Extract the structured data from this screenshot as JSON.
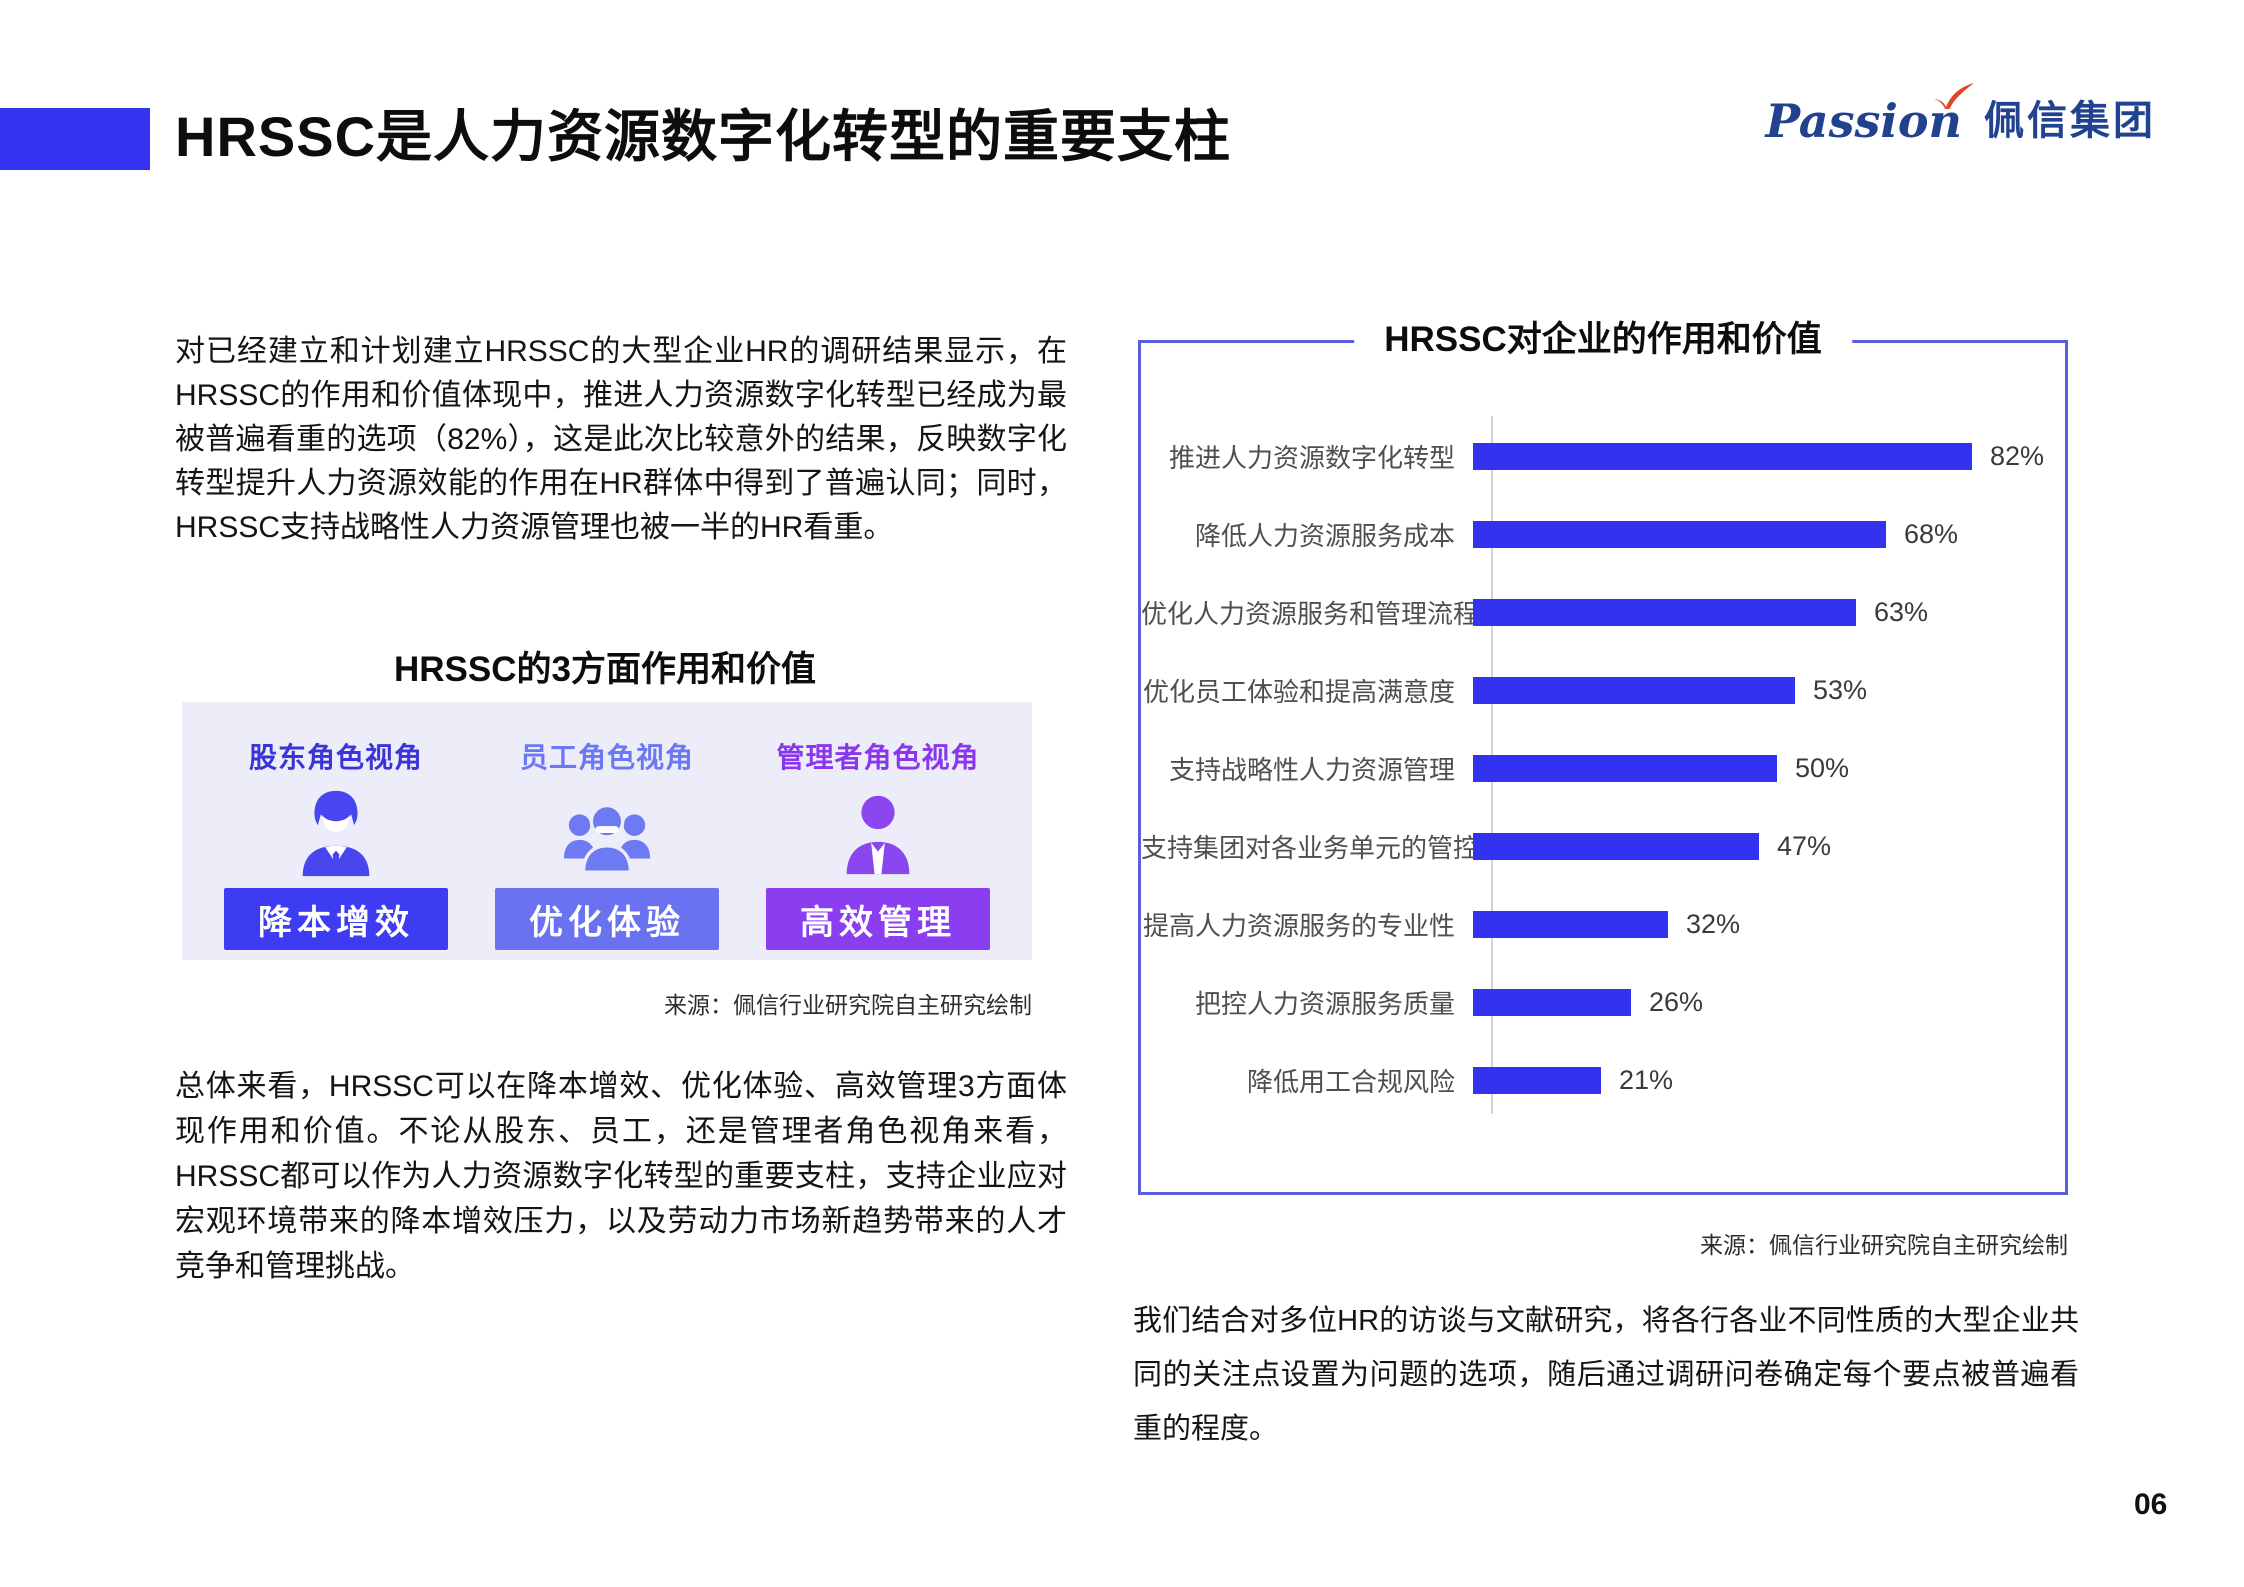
{
  "page": {
    "title": "HRSSC是人力资源数字化转型的重要支柱",
    "page_number": "06"
  },
  "logo": {
    "brand_script": "Passion",
    "brand_name": "佩信集团"
  },
  "left_column": {
    "intro_paragraph": "对已经建立和计划建立HRSSC的大型企业HR的调研结果显示，在HRSSC的作用和价值体现中，推进人力资源数字化转型已经成为最被普遍看重的选项（82%），这是此次比较意外的结果，反映数字化转型提升人力资源效能的作用在HR群体中得到了普遍认同；同时，HRSSC支持战略性人力资源管理也被一半的HR看重。",
    "value_panel": {
      "title": "HRSSC的3方面作用和价值",
      "columns": [
        {
          "header": "股东角色视角",
          "icon": "shareholder-businessman-icon",
          "button_label": "降本增效",
          "accent": "#3e3cf2"
        },
        {
          "header": "员工角色视角",
          "icon": "employee-group-icon",
          "button_label": "优化体验",
          "accent": "#6b72f2"
        },
        {
          "header": "管理者角色视角",
          "icon": "manager-person-icon",
          "button_label": "高效管理",
          "accent": "#8b3ef0"
        }
      ],
      "source": "来源：佩信行业研究院自主研究绘制"
    },
    "summary_paragraph": "总体来看，HRSSC可以在降本增效、优化体验、高效管理3方面体现作用和价值。不论从股东、员工，还是管理者角色视角来看，HRSSC都可以作为人力资源数字化转型的重要支柱，支持企业应对宏观环境带来的降本增效压力，以及劳动力市场新趋势带来的人才竞争和管理挑战。"
  },
  "right_column": {
    "chart_title": "HRSSC对企业的作用和价值",
    "source": "来源：佩信行业研究院自主研究绘制",
    "note_paragraph": "我们结合对多位HR的访谈与文献研究，将各行各业不同性质的大型企业共同的关注点设置为问题的选项，随后通过调研问卷确定每个要点被普遍看重的程度。"
  },
  "chart_data": {
    "type": "bar",
    "orientation": "horizontal",
    "title": "HRSSC对企业的作用和价值",
    "categories": [
      "推进人力资源数字化转型",
      "降低人力资源服务成本",
      "优化人力资源服务和管理流程",
      "优化员工体验和提高满意度",
      "支持战略性人力资源管理",
      "支持集团对各业务单元的管控",
      "提高人力资源服务的专业性",
      "把控人力资源服务质量",
      "降低用工合规风险"
    ],
    "values": [
      82,
      68,
      63,
      53,
      50,
      47,
      32,
      26,
      21
    ],
    "value_labels": [
      "82%",
      "68%",
      "63%",
      "53%",
      "50%",
      "47%",
      "32%",
      "26%",
      "21%"
    ],
    "unit": "%",
    "xlim": [
      0,
      100
    ],
    "bar_color": "#3332f0",
    "grid": false,
    "legend": false,
    "source": "来源：佩信行业研究院自主研究绘制"
  },
  "colors": {
    "accent_blue": "#3434f0",
    "chart_border": "#5c5fdd",
    "panel_background": "#ecedf8",
    "logo_navy": "#21428f",
    "logo_check_red": "#e0452a"
  }
}
